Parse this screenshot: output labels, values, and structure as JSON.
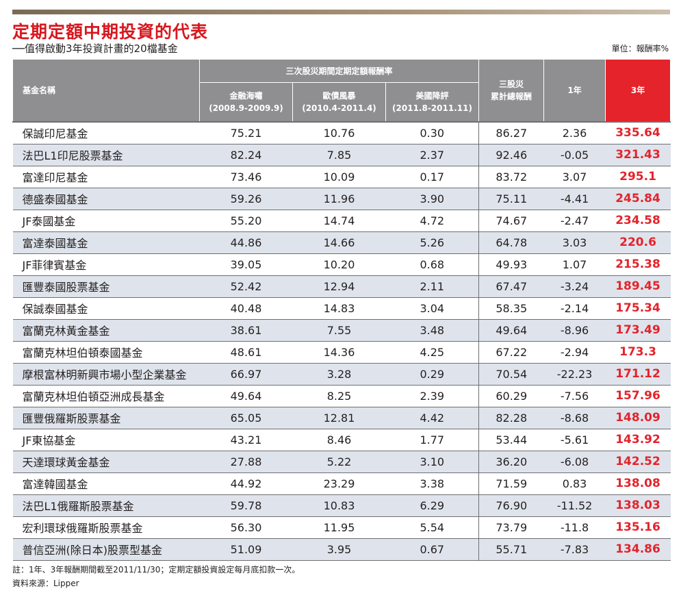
{
  "title": "定期定額中期投資的代表",
  "subtitle": "──值得啟動3年投資計畫的20檔基金",
  "unit": "單位：報酬率%",
  "headers": {
    "name": "基金名稱",
    "group": "三次股災期間定期定額報酬率",
    "crisis1_name": "金融海嘯",
    "crisis1_period": "(2008.9-2009.9)",
    "crisis2_name": "歐債風暴",
    "crisis2_period": "(2010.4-2011.4)",
    "crisis3_name": "美國降評",
    "crisis3_period": "(2011.8-2011.11)",
    "total_line1": "三股災",
    "total_line2": "累計總報酬",
    "y1": "1年",
    "y3": "3年"
  },
  "rows": [
    {
      "name": "保誠印尼基金",
      "c1": "75.21",
      "c2": "10.76",
      "c3": "0.30",
      "total": "86.27",
      "y1": "2.36",
      "y3": "335.64"
    },
    {
      "name": "法巴L1印尼股票基金",
      "c1": "82.24",
      "c2": "7.85",
      "c3": "2.37",
      "total": "92.46",
      "y1": "-0.05",
      "y3": "321.43"
    },
    {
      "name": "富達印尼基金",
      "c1": "73.46",
      "c2": "10.09",
      "c3": "0.17",
      "total": "83.72",
      "y1": "3.07",
      "y3": "295.1"
    },
    {
      "name": "德盛泰國基金",
      "c1": "59.26",
      "c2": "11.96",
      "c3": "3.90",
      "total": "75.11",
      "y1": "-4.41",
      "y3": "245.84"
    },
    {
      "name": "JF泰國基金",
      "c1": "55.20",
      "c2": "14.74",
      "c3": "4.72",
      "total": "74.67",
      "y1": "-2.47",
      "y3": "234.58"
    },
    {
      "name": "富達泰國基金",
      "c1": "44.86",
      "c2": "14.66",
      "c3": "5.26",
      "total": "64.78",
      "y1": "3.03",
      "y3": "220.6"
    },
    {
      "name": "JF菲律賓基金",
      "c1": "39.05",
      "c2": "10.20",
      "c3": "0.68",
      "total": "49.93",
      "y1": "1.07",
      "y3": "215.38"
    },
    {
      "name": "匯豐泰國股票基金",
      "c1": "52.42",
      "c2": "12.94",
      "c3": "2.11",
      "total": "67.47",
      "y1": "-3.24",
      "y3": "189.45"
    },
    {
      "name": "保誠泰國基金",
      "c1": "40.48",
      "c2": "14.83",
      "c3": "3.04",
      "total": "58.35",
      "y1": "-2.14",
      "y3": "175.34"
    },
    {
      "name": "富蘭克林黃金基金",
      "c1": "38.61",
      "c2": "7.55",
      "c3": "3.48",
      "total": "49.64",
      "y1": "-8.96",
      "y3": "173.49"
    },
    {
      "name": "富蘭克林坦伯頓泰國基金",
      "c1": "48.61",
      "c2": "14.36",
      "c3": "4.25",
      "total": "67.22",
      "y1": "-2.94",
      "y3": "173.3"
    },
    {
      "name": "摩根富林明新興市場小型企業基金",
      "c1": "66.97",
      "c2": "3.28",
      "c3": "0.29",
      "total": "70.54",
      "y1": "-22.23",
      "y3": "171.12"
    },
    {
      "name": "富蘭克林坦伯頓亞洲成長基金",
      "c1": "49.64",
      "c2": "8.25",
      "c3": "2.39",
      "total": "60.29",
      "y1": "-7.56",
      "y3": "157.96"
    },
    {
      "name": "匯豐俄羅斯股票基金",
      "c1": "65.05",
      "c2": "12.81",
      "c3": "4.42",
      "total": "82.28",
      "y1": "-8.68",
      "y3": "148.09"
    },
    {
      "name": "JF東協基金",
      "c1": "43.21",
      "c2": "8.46",
      "c3": "1.77",
      "total": "53.44",
      "y1": "-5.61",
      "y3": "143.92"
    },
    {
      "name": "天達環球黃金基金",
      "c1": "27.88",
      "c2": "5.22",
      "c3": "3.10",
      "total": "36.20",
      "y1": "-6.08",
      "y3": "142.52"
    },
    {
      "name": "富達韓國基金",
      "c1": "44.92",
      "c2": "23.29",
      "c3": "3.38",
      "total": "71.59",
      "y1": "0.83",
      "y3": "138.08"
    },
    {
      "name": "法巴L1俄羅斯股票基金",
      "c1": "59.78",
      "c2": "10.83",
      "c3": "6.29",
      "total": "76.90",
      "y1": "-11.52",
      "y3": "138.03"
    },
    {
      "name": "宏利環球俄羅斯股票基金",
      "c1": "56.30",
      "c2": "11.95",
      "c3": "5.54",
      "total": "73.79",
      "y1": "-11.8",
      "y3": "135.16"
    },
    {
      "name": "普信亞洲(除日本)股票型基金",
      "c1": "51.09",
      "c2": "3.95",
      "c3": "0.67",
      "total": "55.71",
      "y1": "-7.83",
      "y3": "134.86"
    }
  ],
  "notes": {
    "note": "註：1年、3年報酬期間截至2011/11/30；定期定額投資設定每月底扣款一次。",
    "source": "資料來源：Lipper"
  },
  "colors": {
    "accent_red": "#e4232b",
    "header_gray": "#8f8f91",
    "alt_row": "#dfe4ec"
  }
}
